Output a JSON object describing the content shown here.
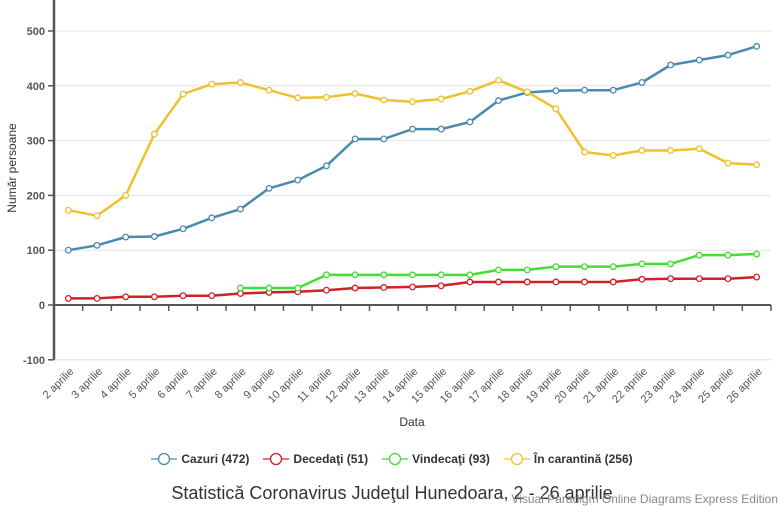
{
  "chart_data": {
    "type": "line",
    "title": "Statistică Coronavirus Judeţul Hunedoara, 2 - 26 aprilie",
    "xlabel": "Data",
    "ylabel": "Număr persoane",
    "ylim": [
      -100,
      550
    ],
    "yticks": [
      -100,
      0,
      100,
      200,
      300,
      400,
      500
    ],
    "ytick_labels": [
      "-100",
      "0",
      "100",
      "200",
      "300",
      "400",
      "500"
    ],
    "grid": true,
    "legend_position": "bottom",
    "categories": [
      "2 aprilie",
      "3 aprilie",
      "4 aprilie",
      "5 aprilie",
      "6 aprilie",
      "7 aprilie",
      "8 aprilie",
      "9 aprilie",
      "10 aprilie",
      "11 aprilie",
      "12 aprilie",
      "13 aprilie",
      "14 aprilie",
      "15 aprilie",
      "16 aprilie",
      "17 aprilie",
      "18 aprilie",
      "19 aprilie",
      "20 aprilie",
      "21 aprilie",
      "22 aprilie",
      "23 aprilie",
      "24 aprilie",
      "25 aprilie",
      "26 aprilie"
    ],
    "series": [
      {
        "name": "Cazuri",
        "legend_label": "Cazuri (472)",
        "color": "#4a8bad",
        "values": [
          100,
          109,
          124,
          125,
          139,
          159,
          175,
          213,
          228,
          254,
          303,
          303,
          321,
          321,
          334,
          373,
          388,
          391,
          392,
          392,
          406,
          438,
          447,
          456,
          472
        ]
      },
      {
        "name": "Decedaţi",
        "legend_label": "Decedaţi (51)",
        "color": "#d0202a",
        "values": [
          12,
          12,
          15,
          15,
          17,
          17,
          21,
          23,
          24,
          27,
          31,
          32,
          33,
          35,
          42,
          42,
          42,
          42,
          42,
          42,
          47,
          48,
          48,
          48,
          51
        ]
      },
      {
        "name": "Vindecaţi",
        "legend_label": "Vindecaţi (93)",
        "color": "#44dd33",
        "values": [
          null,
          null,
          null,
          null,
          null,
          null,
          31,
          31,
          31,
          55,
          55,
          55,
          55,
          55,
          55,
          64,
          64,
          70,
          70,
          70,
          75,
          75,
          91,
          91,
          93
        ]
      },
      {
        "name": "În carantină",
        "legend_label": "În carantină (256)",
        "color": "#f0c030",
        "values": [
          173,
          163,
          200,
          312,
          385,
          403,
          406,
          392,
          378,
          379,
          386,
          374,
          371,
          376,
          390,
          410,
          389,
          358,
          279,
          273,
          282,
          282,
          285,
          259,
          256
        ]
      }
    ]
  },
  "watermark": "Visual Paradigm Online Diagrams Express Edition"
}
